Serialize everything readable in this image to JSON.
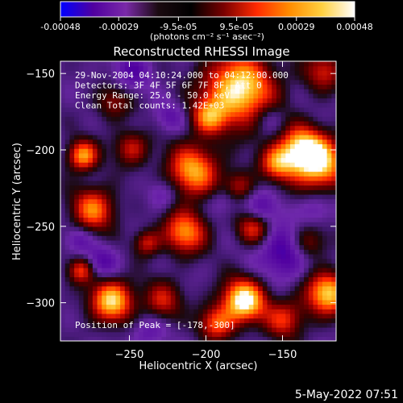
{
  "colorbar": {
    "tick_labels": [
      "-0.00048",
      "-0.00029",
      "-9.5e-05",
      "9.5e-05",
      "0.00029",
      "0.00048"
    ],
    "tick_values": [
      -0.00048,
      -0.00029,
      -9.5e-05,
      9.5e-05,
      0.00029,
      0.00048
    ],
    "range": [
      -0.00048,
      0.00048
    ],
    "units_label": "(photons cm⁻² s⁻¹ asec⁻²)",
    "colors": [
      "#0000ff",
      "#5000a0",
      "#7a2aa8",
      "#1a0a10",
      "#000000",
      "#7a0000",
      "#ff2a00",
      "#ff8c00",
      "#ffd040",
      "#ffffff"
    ]
  },
  "chart_data": {
    "type": "heatmap",
    "title": "Reconstructed RHESSI Image",
    "xlabel": "Heliocentric X (arcsec)",
    "ylabel": "Heliocentric Y (arcsec)",
    "xlim": [
      -295,
      -115
    ],
    "ylim": [
      -325,
      -142
    ],
    "x_ticks": [
      -250,
      -200,
      -150
    ],
    "y_ticks": [
      -150,
      -200,
      -250,
      -300
    ],
    "grid": false,
    "annotations": [
      "29-Nov-2004 04:10:24.000 to 04:12:00.000",
      "Detectors: 3F 4F 5F 6F 7F 8F, Att 0",
      "Energy Range: 25.0 - 50.0 keV",
      "Clean     Total counts: 1.42E+03"
    ],
    "peak_label": "Position of Peak = [-178,-300]",
    "peak_position": [
      -178,
      -300
    ],
    "blobs": [
      {
        "x": -177,
        "y": -300,
        "r": 10,
        "v": 1.0
      },
      {
        "x": -180,
        "y": -162,
        "r": 16,
        "v": 0.95
      },
      {
        "x": -128,
        "y": -210,
        "r": 12,
        "v": 0.9
      },
      {
        "x": -263,
        "y": -300,
        "r": 10,
        "v": 0.85
      },
      {
        "x": -140,
        "y": -200,
        "r": 10,
        "v": 0.7
      },
      {
        "x": -282,
        "y": -205,
        "r": 7,
        "v": 0.75
      },
      {
        "x": -210,
        "y": -215,
        "r": 12,
        "v": 0.75
      },
      {
        "x": -215,
        "y": -255,
        "r": 10,
        "v": 0.7
      },
      {
        "x": -275,
        "y": -240,
        "r": 10,
        "v": 0.65
      },
      {
        "x": -200,
        "y": -180,
        "r": 8,
        "v": 0.55
      },
      {
        "x": -122,
        "y": -295,
        "r": 10,
        "v": 0.85
      },
      {
        "x": -170,
        "y": -252,
        "r": 8,
        "v": 0.55
      },
      {
        "x": -155,
        "y": -210,
        "r": 8,
        "v": 0.6
      },
      {
        "x": -230,
        "y": -300,
        "r": 9,
        "v": 0.45
      },
      {
        "x": -195,
        "y": -315,
        "r": 8,
        "v": 0.55
      },
      {
        "x": -150,
        "y": -312,
        "r": 9,
        "v": 0.5
      },
      {
        "x": -250,
        "y": -200,
        "r": 8,
        "v": 0.45
      },
      {
        "x": -180,
        "y": -225,
        "r": 7,
        "v": 0.4
      },
      {
        "x": -125,
        "y": -150,
        "r": 9,
        "v": 0.45
      },
      {
        "x": -262,
        "y": -170,
        "r": 8,
        "v": 0.35
      },
      {
        "x": -283,
        "y": -280,
        "r": 6,
        "v": 0.55
      },
      {
        "x": -240,
        "y": -262,
        "r": 6,
        "v": 0.45
      },
      {
        "x": -135,
        "y": -262,
        "r": 8,
        "v": 0.45
      },
      {
        "x": -250,
        "y": -150,
        "r": 9,
        "v": -0.35
      },
      {
        "x": -270,
        "y": -275,
        "r": 8,
        "v": -0.4
      },
      {
        "x": -150,
        "y": -268,
        "r": 12,
        "v": -0.55
      },
      {
        "x": -165,
        "y": -240,
        "r": 8,
        "v": -0.4
      },
      {
        "x": -230,
        "y": -230,
        "r": 7,
        "v": -0.3
      },
      {
        "x": -190,
        "y": -235,
        "r": 7,
        "v": -0.25
      },
      {
        "x": -285,
        "y": -260,
        "r": 6,
        "v": -0.3
      },
      {
        "x": -130,
        "y": -240,
        "r": 7,
        "v": -0.3
      },
      {
        "x": -225,
        "y": -180,
        "r": 7,
        "v": -0.3
      },
      {
        "x": -160,
        "y": -180,
        "r": 7,
        "v": -0.25
      },
      {
        "x": -240,
        "y": -320,
        "r": 8,
        "v": -0.3
      }
    ]
  },
  "footer": {
    "datestamp": "5-May-2022 07:51"
  }
}
